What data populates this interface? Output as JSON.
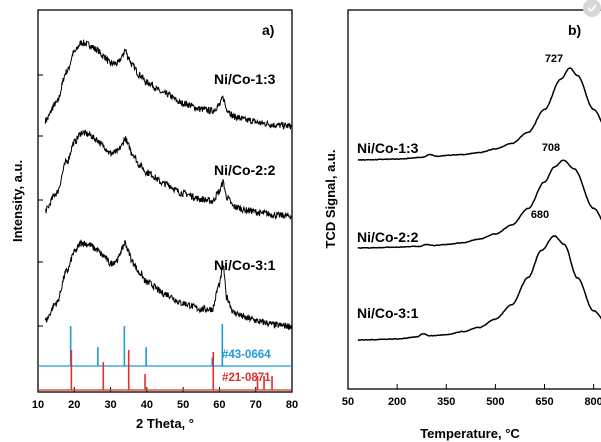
{
  "chart_data": [
    {
      "type": "line",
      "panel": "a)",
      "xlabel": "2 Theta, °",
      "ylabel": "Intensity, a.u.",
      "xlim": [
        10,
        80
      ],
      "xticks": [
        10,
        20,
        30,
        40,
        50,
        60,
        70,
        80
      ],
      "series": [
        {
          "name": "Ni/Co-1:3",
          "x": [
            12,
            15,
            18,
            20,
            22,
            24,
            26,
            28,
            30,
            32,
            33,
            34,
            35,
            36,
            38,
            40,
            45,
            50,
            55,
            58,
            60,
            61,
            62,
            64,
            68,
            72,
            76,
            80
          ],
          "y": [
            0.1,
            0.28,
            0.62,
            0.82,
            0.92,
            0.9,
            0.85,
            0.78,
            0.7,
            0.7,
            0.76,
            0.84,
            0.76,
            0.68,
            0.58,
            0.5,
            0.38,
            0.28,
            0.22,
            0.2,
            0.26,
            0.34,
            0.22,
            0.14,
            0.1,
            0.07,
            0.05,
            0.04
          ]
        },
        {
          "name": "Ni/Co-2:2",
          "x": [
            12,
            15,
            18,
            20,
            22,
            24,
            26,
            28,
            30,
            32,
            33,
            34,
            35,
            36,
            38,
            40,
            45,
            50,
            55,
            58,
            60,
            61,
            62,
            64,
            68,
            72,
            76,
            80
          ],
          "y": [
            0.1,
            0.28,
            0.62,
            0.82,
            0.92,
            0.9,
            0.85,
            0.78,
            0.7,
            0.72,
            0.78,
            0.86,
            0.78,
            0.7,
            0.58,
            0.5,
            0.38,
            0.28,
            0.22,
            0.2,
            0.3,
            0.4,
            0.24,
            0.14,
            0.1,
            0.07,
            0.05,
            0.04
          ]
        },
        {
          "name": "Ni/Co-3:1",
          "x": [
            12,
            15,
            18,
            20,
            22,
            24,
            26,
            28,
            30,
            32,
            33,
            34,
            35,
            36,
            38,
            40,
            45,
            50,
            55,
            58,
            60,
            61,
            62,
            64,
            68,
            72,
            76,
            80
          ],
          "y": [
            0.1,
            0.28,
            0.62,
            0.82,
            0.92,
            0.9,
            0.85,
            0.78,
            0.7,
            0.74,
            0.84,
            0.92,
            0.82,
            0.72,
            0.6,
            0.5,
            0.38,
            0.28,
            0.22,
            0.22,
            0.48,
            0.68,
            0.34,
            0.18,
            0.12,
            0.08,
            0.05,
            0.04
          ]
        }
      ],
      "reference_patterns": [
        {
          "name": "#43-0664",
          "color": "#1e9ad6",
          "peaks": [
            {
              "x": 19,
              "h": 0.95
            },
            {
              "x": 26.5,
              "h": 0.45
            },
            {
              "x": 33.8,
              "h": 0.95
            },
            {
              "x": 39.8,
              "h": 0.45
            },
            {
              "x": 58,
              "h": 0.2
            },
            {
              "x": 60.8,
              "h": 1.0
            }
          ]
        },
        {
          "name": "#21-0871",
          "color": "#e0302a",
          "peaks": [
            {
              "x": 19.2,
              "h": 1.0
            },
            {
              "x": 28,
              "h": 0.7
            },
            {
              "x": 35,
              "h": 1.0
            },
            {
              "x": 39.5,
              "h": 0.4
            },
            {
              "x": 58.3,
              "h": 0.95
            },
            {
              "x": 70.5,
              "h": 0.35
            },
            {
              "x": 72.3,
              "h": 0.35
            },
            {
              "x": 74.5,
              "h": 0.35
            }
          ]
        }
      ]
    },
    {
      "type": "line",
      "panel": "b)",
      "xlabel": "Temperature, °C",
      "ylabel": "TCD Signal, a.u.",
      "xlim": [
        50,
        850
      ],
      "xticks": [
        50,
        200,
        350,
        500,
        650,
        800
      ],
      "series": [
        {
          "name": "Ni/Co-1:3",
          "peak": 727,
          "x": [
            80,
            200,
            280,
            300,
            320,
            350,
            400,
            450,
            500,
            550,
            600,
            650,
            700,
            727,
            750,
            800,
            850
          ],
          "y": [
            0.0,
            0.01,
            0.03,
            0.06,
            0.04,
            0.05,
            0.06,
            0.08,
            0.12,
            0.18,
            0.3,
            0.55,
            0.88,
            1.0,
            0.92,
            0.55,
            0.25
          ]
        },
        {
          "name": "Ni/Co-2:2",
          "peak": 708,
          "x": [
            80,
            200,
            270,
            290,
            310,
            350,
            400,
            450,
            500,
            550,
            600,
            650,
            680,
            708,
            740,
            800,
            850
          ],
          "y": [
            0.0,
            0.01,
            0.02,
            0.04,
            0.03,
            0.04,
            0.06,
            0.1,
            0.16,
            0.26,
            0.45,
            0.75,
            0.92,
            1.0,
            0.9,
            0.45,
            0.18
          ]
        },
        {
          "name": "Ni/Co-3:1",
          "peak": 680,
          "x": [
            80,
            200,
            260,
            280,
            300,
            350,
            400,
            450,
            500,
            550,
            600,
            640,
            680,
            710,
            750,
            800,
            850
          ],
          "y": [
            0.0,
            0.01,
            0.03,
            0.06,
            0.04,
            0.05,
            0.08,
            0.12,
            0.2,
            0.34,
            0.6,
            0.86,
            1.0,
            0.92,
            0.6,
            0.28,
            0.12
          ]
        }
      ]
    }
  ]
}
